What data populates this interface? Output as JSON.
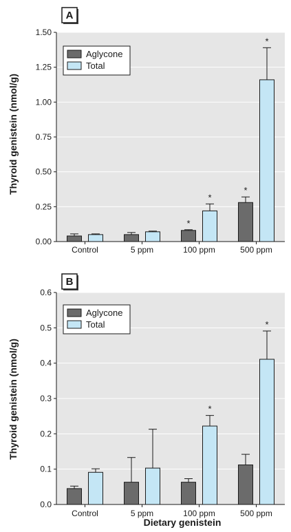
{
  "colors": {
    "plot_bg": "#e6e6e6",
    "aglycone": "#6b6b6b",
    "total": "#c4e6f5",
    "stroke": "#1a1a1a"
  },
  "figure": {
    "xlabel": "Dietary genistein"
  },
  "chart_data": [
    {
      "type": "bar",
      "panel": "A",
      "categories": [
        "Control",
        "5 ppm",
        "100 ppm",
        "500 ppm"
      ],
      "series": [
        {
          "name": "Aglycone",
          "values": [
            0.04,
            0.05,
            0.08,
            0.28
          ],
          "errors": [
            0.015,
            0.015,
            0.005,
            0.04
          ],
          "significant": [
            false,
            false,
            true,
            true
          ]
        },
        {
          "name": "Total",
          "values": [
            0.05,
            0.07,
            0.22,
            1.16
          ],
          "errors": [
            0.005,
            0.005,
            0.05,
            0.23
          ],
          "significant": [
            false,
            false,
            true,
            true
          ]
        }
      ],
      "ylabel": "Thyroid genistein (nmol/g)",
      "ylim": [
        0,
        1.5
      ],
      "yticks": [
        "0.00",
        "0.25",
        "0.50",
        "0.75",
        "1.00",
        "1.25",
        "1.50"
      ],
      "grid": true,
      "legend": "top-left",
      "significance_marker": "*"
    },
    {
      "type": "bar",
      "panel": "B",
      "categories": [
        "Control",
        "5 ppm",
        "100 ppm",
        "500 ppm"
      ],
      "series": [
        {
          "name": "Aglycone",
          "values": [
            0.045,
            0.063,
            0.063,
            0.112
          ],
          "errors": [
            0.007,
            0.07,
            0.01,
            0.03
          ],
          "significant": [
            false,
            false,
            false,
            false
          ]
        },
        {
          "name": "Total",
          "values": [
            0.091,
            0.103,
            0.222,
            0.411
          ],
          "errors": [
            0.01,
            0.11,
            0.03,
            0.08
          ],
          "significant": [
            false,
            false,
            true,
            true
          ]
        }
      ],
      "ylabel": "Thyroid genistein (nmol/g)",
      "ylim": [
        0,
        0.6
      ],
      "yticks": [
        "0.0",
        "0.1",
        "0.2",
        "0.3",
        "0.4",
        "0.5",
        "0.6"
      ],
      "grid": true,
      "legend": "top-left",
      "significance_marker": "*"
    }
  ]
}
